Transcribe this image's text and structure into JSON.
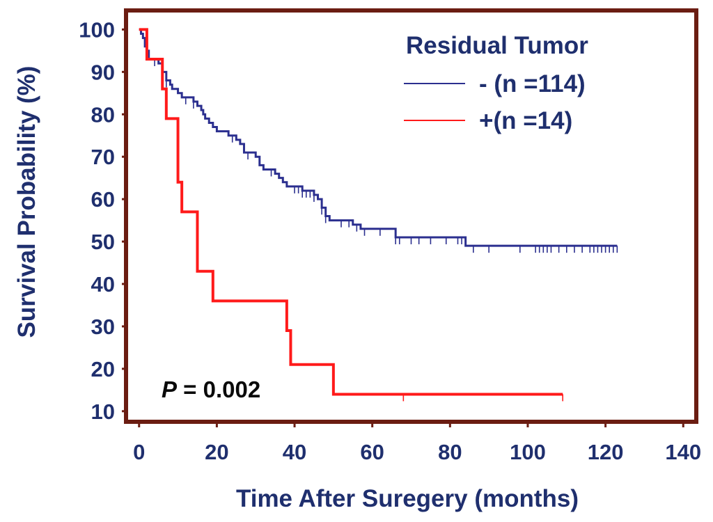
{
  "chart_data": {
    "type": "line",
    "subtype": "kaplan-meier-survival",
    "title": "",
    "xlabel": "Time After Suregery (months)",
    "ylabel": "Survival Probability (%)",
    "xlim": [
      -3,
      143
    ],
    "ylim": [
      8,
      104
    ],
    "xticks": [
      0,
      20,
      40,
      60,
      80,
      100,
      120,
      140
    ],
    "yticks": [
      10,
      20,
      30,
      40,
      50,
      60,
      70,
      80,
      90,
      100
    ],
    "legend": {
      "title": "Residual Tumor",
      "placement": "top-right",
      "entries": [
        {
          "label": "- (n =114)",
          "color": "#2b2f8f"
        },
        {
          "label": "+(n =14)",
          "color": "#ff1a1a"
        }
      ]
    },
    "annotation": {
      "italic": "P",
      "rest": " = 0.002"
    },
    "frame_color": "#6b1d12",
    "series": [
      {
        "name": "- (n =114)",
        "color": "#2b2f8f",
        "steps": [
          [
            0,
            100
          ],
          [
            0.5,
            99
          ],
          [
            1,
            98
          ],
          [
            1.5,
            96
          ],
          [
            2,
            95
          ],
          [
            2.5,
            93
          ],
          [
            5,
            92
          ],
          [
            6,
            90
          ],
          [
            7,
            88
          ],
          [
            8,
            87
          ],
          [
            8.5,
            86
          ],
          [
            10,
            85
          ],
          [
            11,
            84
          ],
          [
            14,
            83
          ],
          [
            15,
            82
          ],
          [
            16,
            81
          ],
          [
            16.5,
            80
          ],
          [
            17,
            79
          ],
          [
            18,
            78
          ],
          [
            19,
            77
          ],
          [
            20,
            76
          ],
          [
            23,
            75
          ],
          [
            25,
            74
          ],
          [
            26,
            73
          ],
          [
            27,
            71
          ],
          [
            30,
            70
          ],
          [
            31,
            68
          ],
          [
            32,
            67
          ],
          [
            35,
            66
          ],
          [
            36,
            65
          ],
          [
            37,
            64
          ],
          [
            38,
            63
          ],
          [
            42,
            62
          ],
          [
            45,
            61
          ],
          [
            46,
            60
          ],
          [
            47,
            58
          ],
          [
            48,
            56
          ],
          [
            49,
            55
          ],
          [
            55,
            54
          ],
          [
            57,
            53
          ],
          [
            66,
            51
          ],
          [
            84,
            49
          ],
          [
            123,
            49
          ]
        ],
        "censored": [
          2,
          4,
          7,
          12,
          14,
          24,
          28,
          34,
          40,
          41,
          42,
          43,
          44,
          45,
          47,
          48,
          52,
          54,
          56,
          58,
          62,
          66,
          67,
          70,
          72,
          75,
          79,
          82,
          83,
          86,
          90,
          98,
          102,
          103,
          104,
          105,
          106,
          108,
          110,
          112,
          114,
          116,
          117,
          118,
          119,
          120,
          121,
          122,
          123
        ]
      },
      {
        "name": "+(n =14)",
        "color": "#ff1a1a",
        "steps": [
          [
            0,
            100
          ],
          [
            2,
            93
          ],
          [
            6,
            86
          ],
          [
            7,
            79
          ],
          [
            10,
            64
          ],
          [
            11,
            57
          ],
          [
            15,
            43
          ],
          [
            19,
            36
          ],
          [
            38,
            29
          ],
          [
            39,
            21
          ],
          [
            50,
            14
          ],
          [
            109,
            14
          ]
        ],
        "censored": [
          68,
          109
        ]
      }
    ]
  }
}
